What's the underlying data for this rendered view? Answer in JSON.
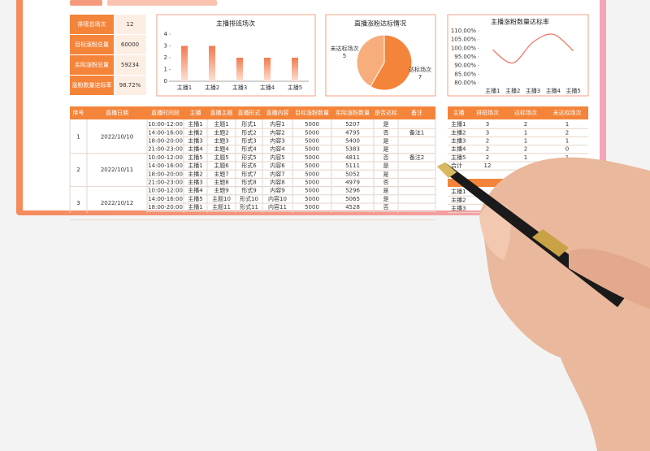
{
  "kpis": [
    {
      "label": "排班总场次",
      "value": "12"
    },
    {
      "label": "目标涨粉总量",
      "value": "60000"
    },
    {
      "label": "实际涨粉总量",
      "value": "59234"
    },
    {
      "label": "涨粉数量达标率",
      "value": "98.72%"
    }
  ],
  "chart_data": [
    {
      "type": "bar",
      "title": "主播排班场次",
      "categories": [
        "主播1",
        "主播2",
        "主播3",
        "主播4",
        "主播5"
      ],
      "values": [
        3,
        3,
        2,
        2,
        2
      ],
      "ylim": [
        0,
        4
      ],
      "yticks": [
        0,
        1,
        2,
        3,
        4
      ],
      "color": "#f59a6a"
    },
    {
      "type": "pie",
      "title": "直播涨粉达标情况",
      "categories": [
        "未达标场次",
        "达标场次"
      ],
      "values": [
        5,
        7
      ],
      "colors": [
        "#f7ae7c",
        "#f4843a"
      ]
    },
    {
      "type": "line",
      "title": "主播涨粉数量达标率",
      "categories": [
        "主播1",
        "主播2",
        "主播3",
        "主播4",
        "主播5"
      ],
      "values": [
        99,
        91.5,
        103.5,
        108,
        98.5
      ],
      "color": "#f07a6a",
      "ylim": [
        80,
        110
      ],
      "yticks": [
        {
          "value": 80,
          "label": "80.00%"
        },
        {
          "value": 85,
          "label": "85.00%"
        },
        {
          "value": 90,
          "label": "90.00%"
        },
        {
          "value": 95,
          "label": "95.00%"
        },
        {
          "value": 100,
          "label": "100.00%"
        },
        {
          "value": 105,
          "label": "105.00%"
        },
        {
          "value": 110,
          "label": "110.00%"
        }
      ]
    }
  ],
  "schedule": {
    "headers": [
      "序号",
      "直播日期",
      "直播时间段",
      "主播",
      "直播主题",
      "直播形式",
      "直播内容",
      "目标涨粉数量",
      "实际涨粉数量",
      "是否达标",
      "备注"
    ],
    "groups": [
      {
        "no": "1",
        "date": "2022/10/10",
        "rows": [
          [
            "10:00-12:00",
            "主播1",
            "主题1",
            "形式1",
            "内容1",
            "5000",
            "5207",
            "是"
          ],
          [
            "14:00-16:00",
            "主播2",
            "主题2",
            "形式2",
            "内容2",
            "5000",
            "4795",
            "否",
            "备注1"
          ],
          [
            "18:00-20:00",
            "主播3",
            "主题3",
            "形式3",
            "内容3",
            "5000",
            "5400",
            "是"
          ],
          [
            "21:00-23:00",
            "主播4",
            "主题4",
            "形式4",
            "内容4",
            "5000",
            "5383",
            "是"
          ]
        ]
      },
      {
        "no": "2",
        "date": "2022/10/11",
        "rows": [
          [
            "10:00-12:00",
            "主播5",
            "主题5",
            "形式5",
            "内容5",
            "5000",
            "4811",
            "否",
            "备注2"
          ],
          [
            "14:00-16:00",
            "主播1",
            "主题6",
            "形式6",
            "内容6",
            "5000",
            "5111",
            "是"
          ],
          [
            "18:00-20:00",
            "主播2",
            "主题7",
            "形式7",
            "内容7",
            "5000",
            "5052",
            "是"
          ],
          [
            "21:00-23:00",
            "主播3",
            "主题8",
            "形式8",
            "内容8",
            "5000",
            "4979",
            "否"
          ]
        ]
      },
      {
        "no": "3",
        "date": "2022/10/12",
        "rows": [
          [
            "10:00-12:00",
            "主播4",
            "主题9",
            "形式9",
            "内容9",
            "5000",
            "5296",
            "是"
          ],
          [
            "14:00-16:00",
            "主播5",
            "主题10",
            "形式10",
            "内容10",
            "5000",
            "5065",
            "是"
          ],
          [
            "18:00-20:00",
            "主播1",
            "主题11",
            "形式11",
            "内容11",
            "5000",
            "4528",
            "否"
          ]
        ]
      }
    ]
  },
  "summary": {
    "headers": [
      "主播",
      "排班场次",
      "达标场次",
      "未达标场次"
    ],
    "rows": [
      [
        "主播1",
        "3",
        "2",
        "1"
      ],
      [
        "主播2",
        "3",
        "1",
        "2"
      ],
      [
        "主播3",
        "2",
        "1",
        "1"
      ],
      [
        "主播4",
        "2",
        "2",
        "0"
      ],
      [
        "主播5",
        "2",
        "1",
        "1"
      ],
      [
        "合计",
        "12"
      ]
    ]
  },
  "summary2": {
    "rows": [
      "主播1",
      "主播2",
      "主播3"
    ]
  }
}
